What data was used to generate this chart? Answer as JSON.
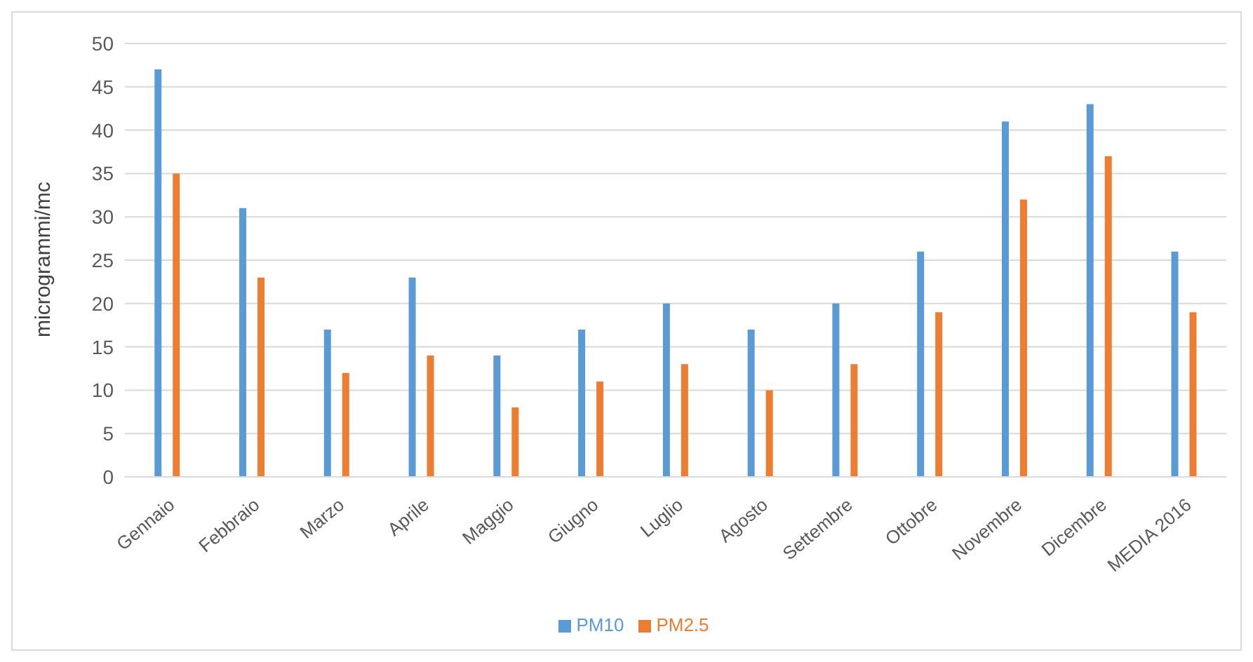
{
  "chart_data": {
    "type": "bar",
    "ylabel": "microgrammi/mc",
    "categories": [
      "Gennaio",
      "Febbraio",
      "Marzo",
      "Aprile",
      "Maggio",
      "Giugno",
      "Luglio",
      "Agosto",
      "Settembre",
      "Ottobre",
      "Novembre",
      "Dicembre",
      "MEDIA 2016"
    ],
    "series": [
      {
        "name": "PM10",
        "color": "#5b9bd5",
        "values": [
          47,
          31,
          17,
          23,
          14,
          17,
          20,
          17,
          20,
          26,
          41,
          43,
          26
        ]
      },
      {
        "name": "PM2.5",
        "color": "#ed7d31",
        "values": [
          35,
          23,
          12,
          14,
          8,
          11,
          13,
          10,
          13,
          19,
          32,
          37,
          19
        ]
      }
    ],
    "ylim": [
      0,
      50
    ],
    "yticks": [
      0,
      5,
      10,
      15,
      20,
      25,
      30,
      35,
      40,
      45,
      50
    ],
    "grid": "y",
    "legend": "bottom"
  }
}
